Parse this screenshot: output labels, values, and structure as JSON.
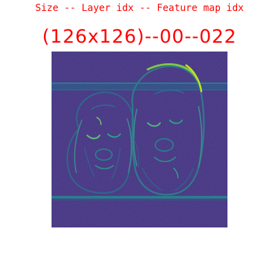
{
  "header": {
    "caption": "Size -- Layer idx -- Feature map idx"
  },
  "map": {
    "label": "(126x126)--00--022",
    "colormap": {
      "background": "#3e2a7a",
      "low": "#472c7c",
      "mid": "#2d6f8e",
      "high": "#26a784",
      "peak": "#c7e020"
    },
    "subject": "feature-map-two-puppies"
  }
}
